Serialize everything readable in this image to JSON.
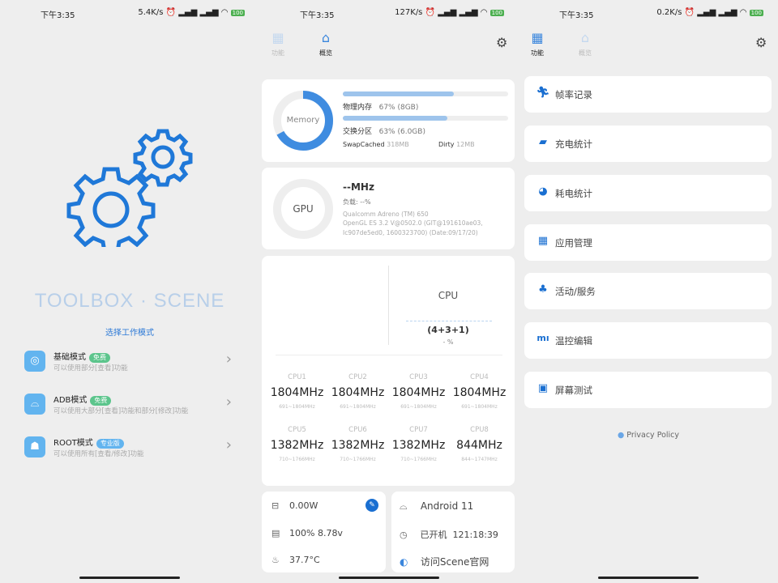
{
  "status_bars": [
    {
      "time": "下午3:35",
      "speed": "5.4K/s",
      "battery": "100"
    },
    {
      "time": "下午3:35",
      "speed": "127K/s",
      "battery": "100"
    },
    {
      "time": "下午3:35",
      "speed": "0.2K/s",
      "battery": "100"
    }
  ],
  "welcome": {
    "title": "TOOLBOX · SCENE",
    "subtitle": "选择工作模式",
    "modes": [
      {
        "name": "基础模式",
        "badge": "免费",
        "badge_color": "#5cc58c",
        "desc": "可以使用部分[查看]功能"
      },
      {
        "name": "ADB模式",
        "badge": "免费",
        "badge_color": "#5cc58c",
        "desc": "可以使用大部分[查看]功能和部分[修改]功能"
      },
      {
        "name": "ROOT模式",
        "badge": "专业版",
        "badge_color": "#62b4ef",
        "desc": "可以使用所有[查看/修改]功能"
      }
    ]
  },
  "tabs": {
    "functions": "功能",
    "overview": "概览"
  },
  "overview": {
    "memory": {
      "label": "Memory",
      "ram_label": "物理内存",
      "ram_value": "67% (8GB)",
      "ram_pct": 67,
      "swap_label": "交换分区",
      "swap_value": "63% (6.0GB)",
      "swap_pct": 63,
      "swapcached_label": "SwapCached",
      "swapcached": "318MB",
      "dirty_label": "Dirty",
      "dirty": "12MB"
    },
    "gpu": {
      "label": "GPU",
      "freq": "--MHz",
      "load": "负载: --%",
      "renderer": "Qualcomm Adreno (TM) 650",
      "version": "OpenGL ES 3.2 V@0502.0 (GIT@191610ae03, Ic907de5ed0, 1600323700) (Date:09/17/20)"
    },
    "cpu": {
      "label": "CPU",
      "cluster": "(4+3+1)",
      "load": "- %",
      "cores": [
        {
          "name": "CPU1",
          "freq": "1804MHz",
          "range": "691~1804MHz"
        },
        {
          "name": "CPU2",
          "freq": "1804MHz",
          "range": "691~1804MHz"
        },
        {
          "name": "CPU3",
          "freq": "1804MHz",
          "range": "691~1804MHz"
        },
        {
          "name": "CPU4",
          "freq": "1804MHz",
          "range": "691~1804MHz"
        },
        {
          "name": "CPU5",
          "freq": "1382MHz",
          "range": "710~1766MHz"
        },
        {
          "name": "CPU6",
          "freq": "1382MHz",
          "range": "710~1766MHz"
        },
        {
          "name": "CPU7",
          "freq": "1382MHz",
          "range": "710~1766MHz"
        },
        {
          "name": "CPU8",
          "freq": "844MHz",
          "range": "844~1747MHz"
        }
      ]
    },
    "power": {
      "watts": "0.00W",
      "battery": "100%  8.78v",
      "temp": "37.7°C"
    },
    "system": {
      "android": "Android 11",
      "uptime_label": "已开机",
      "uptime": "121:18:39",
      "website": "访问Scene官网"
    }
  },
  "functions": {
    "items": [
      {
        "label": "帧率记录",
        "icon": "running-icon"
      },
      {
        "label": "充电统计",
        "icon": "charging-icon"
      },
      {
        "label": "耗电统计",
        "icon": "pie-chart-icon"
      },
      {
        "label": "应用管理",
        "icon": "grid-icon"
      },
      {
        "label": "活动/服务",
        "icon": "cluster-icon"
      },
      {
        "label": "温控编辑",
        "icon": "mi-icon"
      },
      {
        "label": "屏幕测试",
        "icon": "screen-icon"
      }
    ],
    "privacy": "Privacy Policy"
  },
  "colors": {
    "accent": "#2b78d6",
    "background": "#eeeeee"
  }
}
